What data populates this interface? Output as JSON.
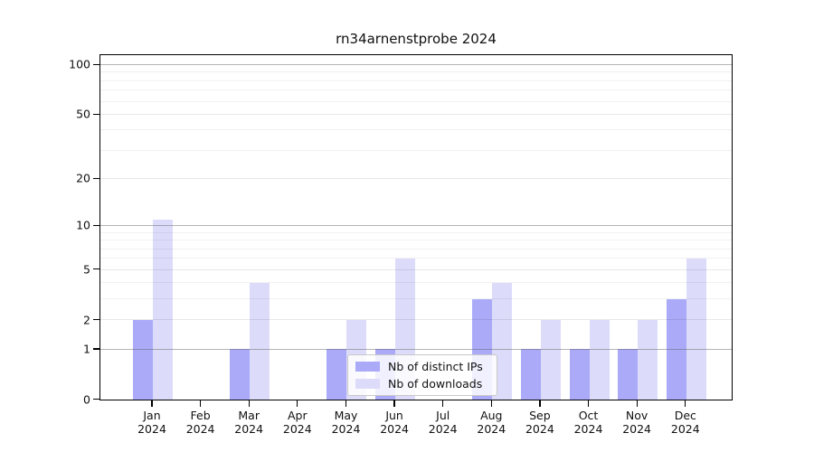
{
  "figure": {
    "title": "rn34arnenstprobe 2024"
  },
  "chart_data": {
    "type": "bar",
    "title": "rn34arnenstprobe 2024",
    "categories": [
      "Jan 2024",
      "Feb 2024",
      "Mar 2024",
      "Apr 2024",
      "May 2024",
      "Jun 2024",
      "Jul 2024",
      "Aug 2024",
      "Sep 2024",
      "Oct 2024",
      "Nov 2024",
      "Dec 2024"
    ],
    "x_tick_month": [
      "Jan",
      "Feb",
      "Mar",
      "Apr",
      "May",
      "Jun",
      "Jul",
      "Aug",
      "Sep",
      "Oct",
      "Nov",
      "Dec"
    ],
    "x_tick_year": "2024",
    "series": [
      {
        "name": "Nb of distinct IPs",
        "color": "#aaaaf8",
        "values": [
          2,
          0,
          1,
          0,
          1,
          1,
          0,
          3,
          1,
          1,
          1,
          3
        ]
      },
      {
        "name": "Nb of downloads",
        "color": "#dcdcfa",
        "values": [
          11,
          0,
          4,
          0,
          2,
          6,
          0,
          4,
          2,
          2,
          2,
          6
        ]
      }
    ],
    "xlabel": "",
    "ylabel": "",
    "ylim": [
      0,
      100
    ],
    "y_scale": "log1p",
    "y_ticks": [
      0,
      1,
      2,
      5,
      10,
      20,
      50,
      100
    ],
    "y_decade_gridlines": [
      1,
      10,
      100
    ],
    "y_mid_gridlines": [
      2,
      5,
      20,
      50
    ],
    "y_minor_gridlines": [
      3,
      4,
      6,
      7,
      8,
      9,
      30,
      40,
      60,
      70,
      80,
      90
    ],
    "grid": true,
    "legend_position": "lower center",
    "legend": [
      "Nb of distinct IPs",
      "Nb of downloads"
    ]
  },
  "colors": {
    "background": "#ffffff",
    "axis": "#000000",
    "decade_gridline": "rgba(90,90,90,0.45)",
    "mid_gridline": "rgba(0,0,0,0.09)",
    "minor_gridline": "rgba(0,0,0,0.055)",
    "distinct_ips_bar": "#aaaaf8",
    "downloads_bar": "#dcdcfa",
    "legend_border": "#c9c9c9"
  }
}
